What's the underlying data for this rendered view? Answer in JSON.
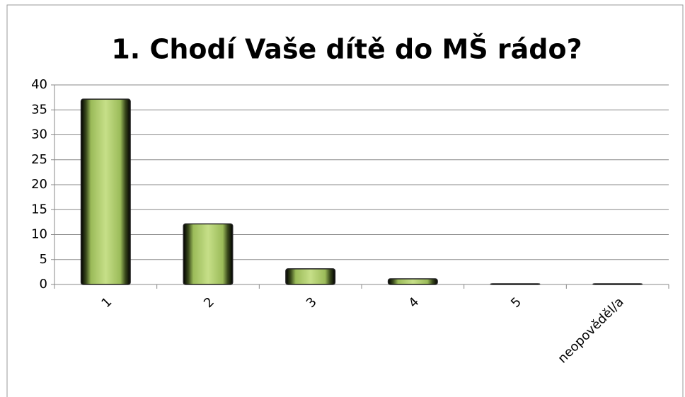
{
  "chart_data": {
    "type": "bar",
    "title": "1. Chodí Vaše dítě do MŠ rádo?",
    "categories": [
      "1",
      "2",
      "3",
      "4",
      "5",
      "neopověděl/a"
    ],
    "values": [
      37,
      12,
      3,
      1,
      0,
      0
    ],
    "color": "#9bbb59",
    "ylim": [
      0,
      40
    ],
    "yticks": [
      0,
      5,
      10,
      15,
      20,
      25,
      30,
      35,
      40
    ],
    "grid": true
  }
}
